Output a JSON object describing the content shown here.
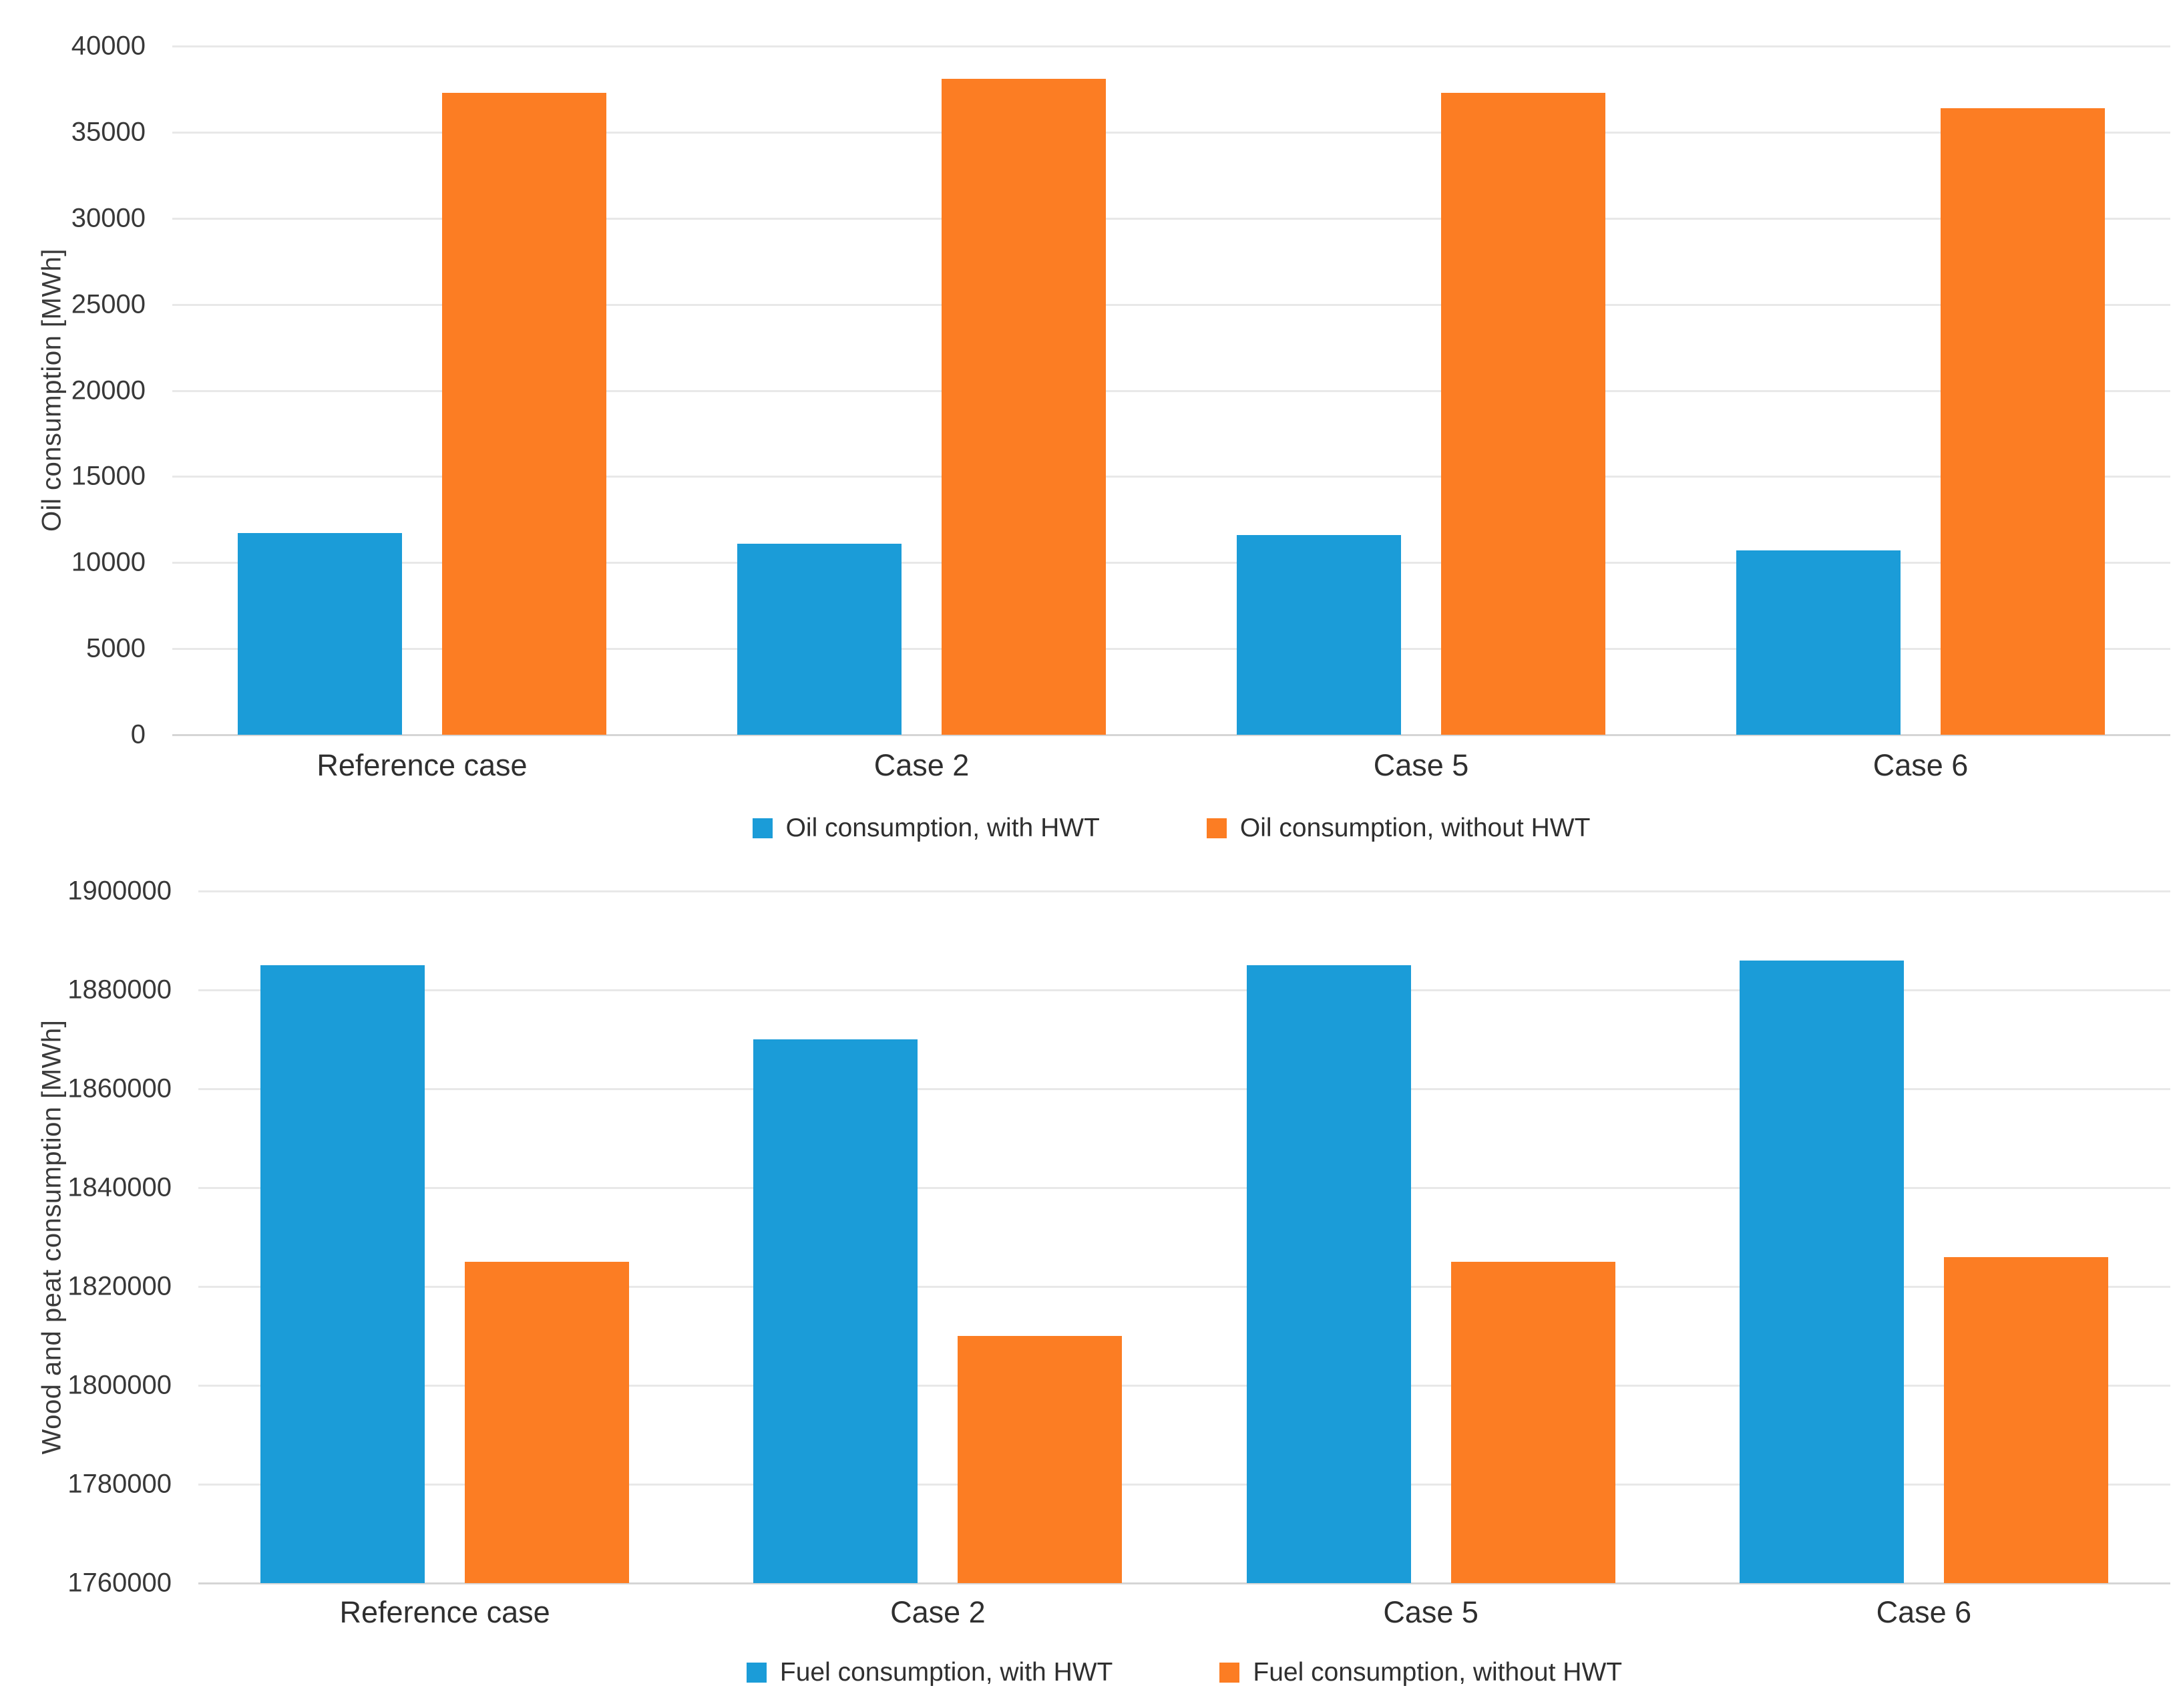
{
  "colors": {
    "with_hwt": "#1b9cd8",
    "without_hwt": "#fc7d23",
    "gridline": "#e8e8e8",
    "axis_line": "#d5d5d5",
    "text": "#2f2f2f"
  },
  "chart_data": [
    {
      "type": "bar",
      "title": "",
      "ylabel": "Oil consumption [MWh]",
      "xlabel": "",
      "categories": [
        "Reference case",
        "Case 2",
        "Case 5",
        "Case 6"
      ],
      "series": [
        {
          "name": "Oil consumption, with HWT",
          "color_key": "with_hwt",
          "values": [
            11700,
            11100,
            11600,
            10700
          ]
        },
        {
          "name": "Oil consumption, without HWT",
          "color_key": "without_hwt",
          "values": [
            37300,
            38100,
            37300,
            36400
          ]
        }
      ],
      "ylim": [
        0,
        40000
      ],
      "ytick_step": 5000,
      "grid": true,
      "legend_position": "bottom"
    },
    {
      "type": "bar",
      "title": "",
      "ylabel": "Wood and peat consumption [MWh]",
      "xlabel": "",
      "categories": [
        "Reference case",
        "Case 2",
        "Case 5",
        "Case 6"
      ],
      "series": [
        {
          "name": "Fuel consumption, with HWT",
          "color_key": "with_hwt",
          "values": [
            1885000,
            1870000,
            1885000,
            1886000
          ]
        },
        {
          "name": "Fuel consumption, without HWT",
          "color_key": "without_hwt",
          "values": [
            1825000,
            1810000,
            1825000,
            1826000
          ]
        }
      ],
      "ylim": [
        1760000,
        1900000
      ],
      "ytick_step": 20000,
      "grid": true,
      "legend_position": "bottom"
    }
  ]
}
